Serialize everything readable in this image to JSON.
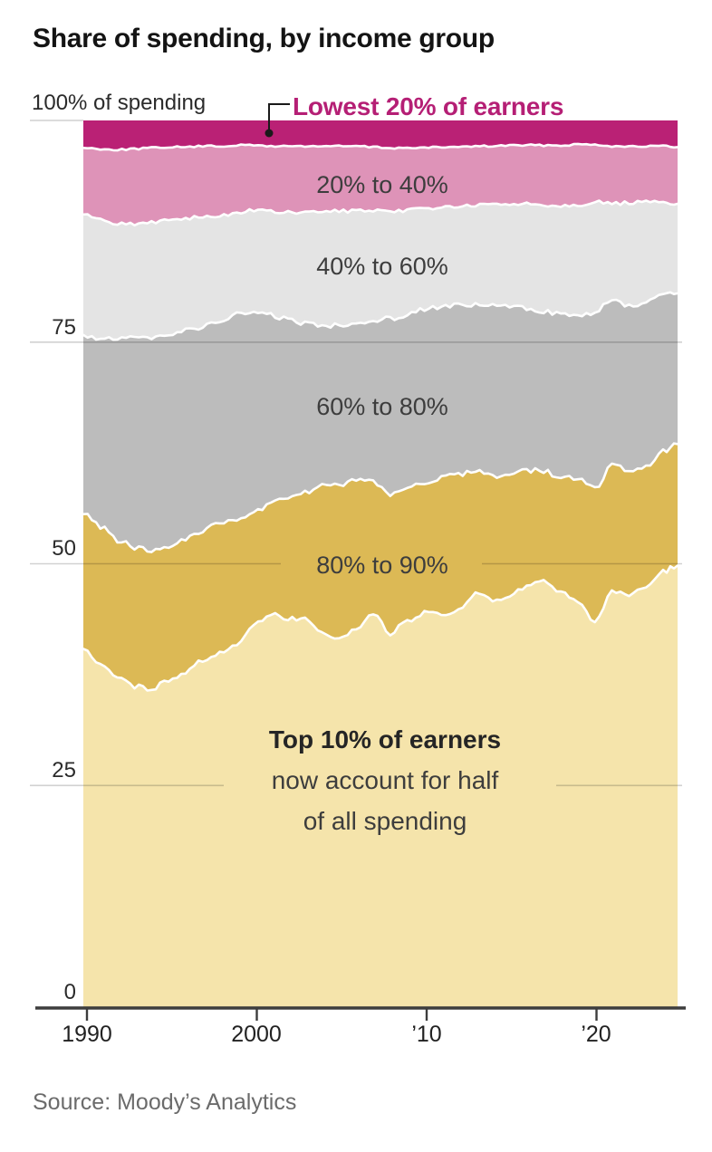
{
  "title": "Share of spending, by income group",
  "source": "Source: Moody’s Analytics",
  "y_axis": {
    "top_label": "100% of spending",
    "ticks": [
      "75",
      "50",
      "25",
      "0"
    ]
  },
  "x_axis": {
    "ticks": [
      "1990",
      "2000",
      "’10",
      "’20"
    ]
  },
  "annotation": {
    "line1": "Top 10% of earners",
    "line2": "now account for half",
    "line3": "of all spending"
  },
  "colors": {
    "callout_text": "#b51f75",
    "title_text": "#141414",
    "axis_line": "#3d3d3d",
    "gridline": "#9a9a9a",
    "boundary_stroke": "#ffffff"
  },
  "chart_data": {
    "type": "area",
    "stacked": true,
    "title": "Share of spending, by income group",
    "ylabel": "100% of spending",
    "ylim": [
      0,
      100
    ],
    "xlim": [
      1990,
      2024.85
    ],
    "grid_values": [
      100,
      75,
      50,
      25,
      0
    ],
    "legend_position": "labels-on-bands",
    "x": [
      1990,
      1991,
      1992,
      1993,
      1994,
      1995,
      1996,
      1997,
      1998,
      1999,
      2000,
      2001,
      2002,
      2003,
      2004,
      2005,
      2006,
      2007,
      2008,
      2009,
      2010,
      2011,
      2012,
      2013,
      2014,
      2015,
      2016,
      2017,
      2018,
      2019,
      2020,
      2021,
      2022,
      2023,
      2024,
      2024.85
    ],
    "stack_order": "top-to-bottom",
    "series": [
      {
        "name": "Lowest 20% of earners",
        "color": "#ba2175",
        "values": [
          3.1,
          3.2,
          3.3,
          3.2,
          3.1,
          3.0,
          3.0,
          2.9,
          2.9,
          2.8,
          2.8,
          2.9,
          2.9,
          2.9,
          2.9,
          2.9,
          2.9,
          3.0,
          3.1,
          3.1,
          3.1,
          3.0,
          3.0,
          2.9,
          2.9,
          2.8,
          2.8,
          2.8,
          2.8,
          2.7,
          2.7,
          2.9,
          2.9,
          2.9,
          2.9,
          3.0
        ]
      },
      {
        "name": "20% to 40%",
        "color": "#de93b8",
        "values": [
          7.5,
          8.0,
          8.3,
          8.5,
          8.4,
          8.2,
          8.0,
          8.0,
          7.9,
          7.6,
          7.3,
          7.4,
          7.5,
          7.5,
          7.4,
          7.3,
          7.3,
          7.2,
          7.3,
          7.0,
          6.8,
          6.8,
          6.7,
          6.7,
          6.6,
          6.6,
          6.6,
          6.7,
          6.8,
          6.8,
          6.5,
          6.5,
          6.4,
          6.3,
          6.4,
          6.4
        ]
      },
      {
        "name": "40% to 60%",
        "color": "#e4e4e4",
        "values": [
          13.6,
          13.4,
          13.1,
          12.9,
          12.9,
          12.8,
          12.7,
          12.4,
          11.8,
          11.5,
          11.5,
          11.7,
          12.0,
          12.5,
          12.9,
          12.8,
          12.6,
          12.4,
          11.9,
          11.8,
          11.3,
          11.2,
          11.2,
          11.2,
          11.4,
          11.6,
          11.8,
          12.0,
          12.2,
          12.7,
          12.4,
          10.9,
          11.7,
          11.3,
          10.5,
          10.1
        ]
      },
      {
        "name": "60% to 80%",
        "color": "#bcbcbc",
        "values": [
          20.2,
          21.2,
          22.6,
          23.6,
          24.0,
          24.0,
          23.5,
          22.9,
          22.8,
          23.0,
          22.6,
          21.2,
          20.0,
          19.0,
          18.1,
          18.0,
          17.9,
          18.2,
          20.0,
          19.3,
          19.7,
          19.4,
          19.0,
          18.6,
          19.2,
          18.9,
          18.2,
          18.1,
          18.4,
          18.3,
          19.9,
          18.6,
          18.5,
          18.7,
          17.6,
          17.0
        ]
      },
      {
        "name": "80% to 90%",
        "color": "#dcb955",
        "values": [
          15.2,
          15.7,
          15.3,
          15.6,
          15.8,
          15.2,
          15.0,
          14.6,
          14.6,
          14.5,
          12.6,
          12.4,
          13.9,
          14.3,
          16.7,
          17.6,
          16.8,
          14.8,
          15.5,
          15.2,
          14.7,
          15.4,
          15.3,
          14.1,
          14.0,
          13.8,
          13.2,
          12.3,
          13.2,
          13.8,
          15.0,
          14.3,
          13.9,
          13.4,
          13.5,
          13.7
        ]
      },
      {
        "name": "Top 10% of earners",
        "color": "#f5e4ab",
        "values": [
          40.4,
          38.5,
          37.4,
          36.2,
          35.8,
          36.8,
          37.8,
          39.2,
          40.0,
          40.6,
          43.2,
          44.4,
          43.7,
          43.8,
          42.0,
          41.4,
          42.5,
          44.4,
          42.2,
          43.6,
          44.4,
          44.2,
          44.8,
          46.5,
          45.9,
          46.3,
          47.4,
          48.1,
          46.6,
          45.7,
          43.5,
          46.8,
          46.6,
          47.4,
          49.1,
          49.8
        ]
      }
    ]
  }
}
